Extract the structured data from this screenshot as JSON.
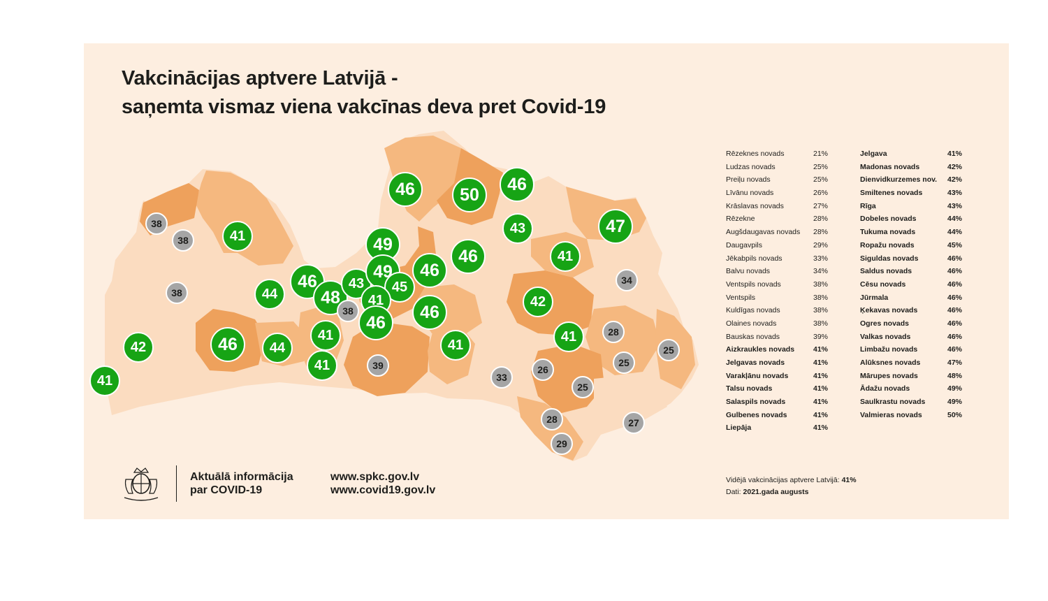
{
  "title": {
    "line1": "Vakcinācijas aptvere Latvijā -",
    "line2": "saņemta vismaz viena vakcīnas deva pret Covid-19"
  },
  "colors": {
    "background": "#fdeee0",
    "region_light": "#fbdcc0",
    "region_mid": "#f5b87f",
    "region_dark": "#eea15c",
    "bubble_high": "#17a415",
    "bubble_low": "#a5a5a5"
  },
  "map_labels": [
    {
      "value": "38",
      "group": "low"
    },
    {
      "value": "38",
      "group": "low"
    },
    {
      "value": "41",
      "group": "high"
    },
    {
      "value": "38",
      "group": "low"
    },
    {
      "value": "44",
      "group": "high"
    },
    {
      "value": "46",
      "group": "high"
    },
    {
      "value": "48",
      "group": "high"
    },
    {
      "value": "38",
      "group": "low"
    },
    {
      "value": "43",
      "group": "high"
    },
    {
      "value": "49",
      "group": "high"
    },
    {
      "value": "49",
      "group": "high"
    },
    {
      "value": "45",
      "group": "high"
    },
    {
      "value": "41",
      "group": "high"
    },
    {
      "value": "46",
      "group": "high"
    },
    {
      "value": "46",
      "group": "high"
    },
    {
      "value": "46",
      "group": "high"
    },
    {
      "value": "46",
      "group": "high"
    },
    {
      "value": "46",
      "group": "high"
    },
    {
      "value": "50",
      "group": "high"
    },
    {
      "value": "46",
      "group": "high"
    },
    {
      "value": "43",
      "group": "high"
    },
    {
      "value": "47",
      "group": "high"
    },
    {
      "value": "41",
      "group": "high"
    },
    {
      "value": "34",
      "group": "low"
    },
    {
      "value": "42",
      "group": "high"
    },
    {
      "value": "42",
      "group": "high"
    },
    {
      "value": "41",
      "group": "high"
    },
    {
      "value": "46",
      "group": "high"
    },
    {
      "value": "44",
      "group": "high"
    },
    {
      "value": "41",
      "group": "high"
    },
    {
      "value": "41",
      "group": "high"
    },
    {
      "value": "39",
      "group": "low"
    },
    {
      "value": "41",
      "group": "high"
    },
    {
      "value": "41",
      "group": "high"
    },
    {
      "value": "28",
      "group": "low"
    },
    {
      "value": "25",
      "group": "low"
    },
    {
      "value": "25",
      "group": "low"
    },
    {
      "value": "26",
      "group": "low"
    },
    {
      "value": "33",
      "group": "low"
    },
    {
      "value": "25",
      "group": "low"
    },
    {
      "value": "28",
      "group": "low"
    },
    {
      "value": "29",
      "group": "low"
    },
    {
      "value": "27",
      "group": "low"
    }
  ],
  "legend_col1": [
    {
      "name": "Rēzeknes novads",
      "value": "21%",
      "bold": false
    },
    {
      "name": "Ludzas novads",
      "value": "25%",
      "bold": false
    },
    {
      "name": "Preiļu novads",
      "value": "25%",
      "bold": false
    },
    {
      "name": "Līvānu novads",
      "value": "26%",
      "bold": false
    },
    {
      "name": "Krāslavas novads",
      "value": "27%",
      "bold": false
    },
    {
      "name": "Rēzekne",
      "value": "28%",
      "bold": false
    },
    {
      "name": "Augšdaugavas novads",
      "value": "28%",
      "bold": false
    },
    {
      "name": "Daugavpils",
      "value": "29%",
      "bold": false
    },
    {
      "name": "Jēkabpils novads",
      "value": "33%",
      "bold": false
    },
    {
      "name": "Balvu novads",
      "value": "34%",
      "bold": false
    },
    {
      "name": "Ventspils novads",
      "value": "38%",
      "bold": false
    },
    {
      "name": "Ventspils",
      "value": "38%",
      "bold": false
    },
    {
      "name": "Kuldīgas novads",
      "value": "38%",
      "bold": false
    },
    {
      "name": "Olaines novads",
      "value": "38%",
      "bold": false
    },
    {
      "name": "Bauskas novads",
      "value": "39%",
      "bold": false
    },
    {
      "name": "Aizkraukles novads",
      "value": "41%",
      "bold": true
    },
    {
      "name": "Jelgavas novads",
      "value": "41%",
      "bold": true
    },
    {
      "name": "Varakļānu novads",
      "value": "41%",
      "bold": true
    },
    {
      "name": "Talsu novads",
      "value": "41%",
      "bold": true
    },
    {
      "name": "Salaspils novads",
      "value": "41%",
      "bold": true
    },
    {
      "name": "Gulbenes novads",
      "value": "41%",
      "bold": true
    },
    {
      "name": "Liepāja",
      "value": "41%",
      "bold": true
    }
  ],
  "legend_col2": [
    {
      "name": "Jelgava",
      "value": "41%"
    },
    {
      "name": "Madonas novads",
      "value": "42%"
    },
    {
      "name": "Dienvidkurzemes nov.",
      "value": "42%"
    },
    {
      "name": "Smiltenes novads",
      "value": "43%"
    },
    {
      "name": "Rīga",
      "value": "43%"
    },
    {
      "name": "Dobeles novads",
      "value": "44%"
    },
    {
      "name": "Tukuma novads",
      "value": "44%"
    },
    {
      "name": "Ropažu novads",
      "value": "45%"
    },
    {
      "name": "Siguldas novads",
      "value": "46%"
    },
    {
      "name": "Saldus novads",
      "value": "46%"
    },
    {
      "name": "Cēsu novads",
      "value": "46%"
    },
    {
      "name": "Jūrmala",
      "value": "46%"
    },
    {
      "name": "Ķekavas novads",
      "value": "46%"
    },
    {
      "name": "Ogres novads",
      "value": "46%"
    },
    {
      "name": "Valkas novads",
      "value": "46%"
    },
    {
      "name": "Limbažu novads",
      "value": "46%"
    },
    {
      "name": "Alūksnes novads",
      "value": "47%"
    },
    {
      "name": "Mārupes novads",
      "value": "48%"
    },
    {
      "name": "Ādažu novads",
      "value": "49%"
    },
    {
      "name": "Saulkrastu novads",
      "value": "49%"
    },
    {
      "name": "Valmieras novads",
      "value": "50%"
    }
  ],
  "footer": {
    "info_line1": "Aktuālā informācija",
    "info_line2": "par COVID-19",
    "url1": "www.spkc.gov.lv",
    "url2": "www.covid19.gov.lv",
    "avg_label": "Vidējā vakcinācijas aptvere Latvijā:",
    "avg_value": "41%",
    "date_label": "Dati:",
    "date_value": "2021.gada augusts"
  },
  "icons": {
    "coat_of_arms": "latvia-coat-of-arms-icon"
  }
}
